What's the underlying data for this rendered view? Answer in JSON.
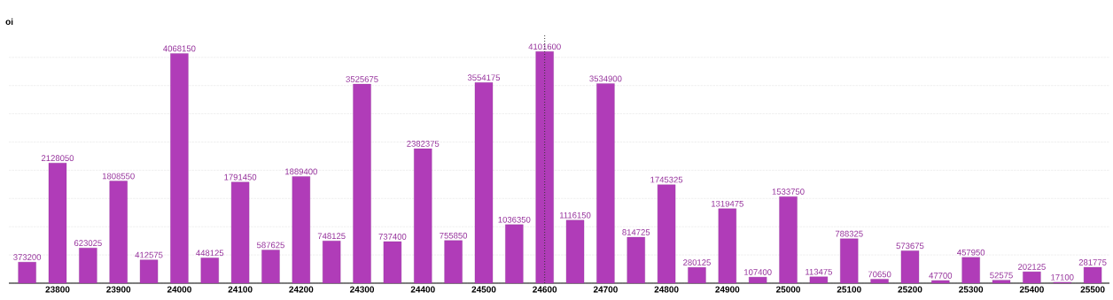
{
  "chart_data": {
    "type": "bar",
    "ylabel": "oi",
    "categories": [
      null,
      "23800",
      null,
      "23900",
      null,
      "24000",
      null,
      "24100",
      null,
      "24200",
      null,
      "24300",
      null,
      "24400",
      null,
      "24500",
      null,
      "24600",
      null,
      "24700",
      null,
      "24800",
      null,
      "24900",
      null,
      "25000",
      null,
      "25100",
      null,
      "25200",
      null,
      "25300",
      null,
      "25400",
      null,
      "25500"
    ],
    "values": [
      373200,
      2128050,
      623025,
      1808550,
      412575,
      4068150,
      448125,
      1791450,
      587625,
      1889400,
      748125,
      3525675,
      737400,
      2382375,
      755850,
      3554175,
      1036350,
      4101600,
      1116150,
      3534900,
      814725,
      1745325,
      280125,
      1319475,
      107400,
      1533750,
      113475,
      788325,
      70650,
      573675,
      47700,
      457950,
      52575,
      202125,
      17100,
      281775
    ],
    "color": "#b03cb8",
    "data_labels": true,
    "tick_labels": "x",
    "grid": "y",
    "ref_lines": [
      {
        "axis": "x",
        "value": "24600",
        "line_style": "dotted",
        "color": "#333333"
      }
    ]
  }
}
